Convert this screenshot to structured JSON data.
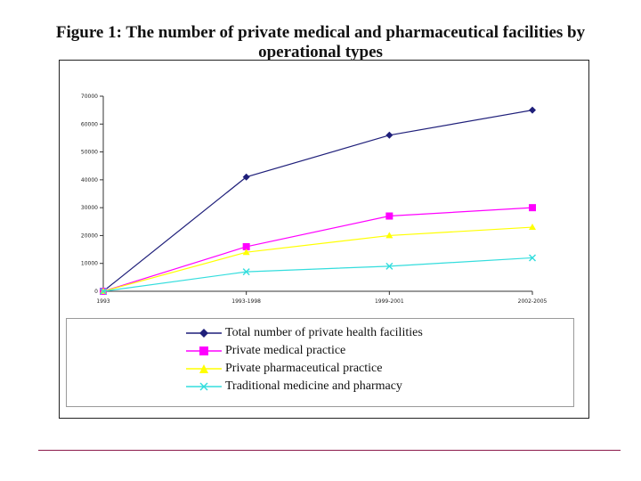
{
  "figure": {
    "title_line1": "Figure 1: The number of private medical and pharmaceutical facilities by",
    "title_line2": "operational types"
  },
  "chart_data": {
    "type": "line",
    "title": "Figure 1: The number of private medical and pharmaceutical facilities by operational types",
    "xlabel": "",
    "ylabel": "",
    "categories": [
      "1993",
      "1993-1998",
      "1999-2001",
      "2002-2005"
    ],
    "ylim": [
      0,
      70000
    ],
    "yticks": [
      "70000",
      "60000",
      "50000",
      "40000",
      "30000",
      "20000",
      "10000",
      "0"
    ],
    "grid": false,
    "legend_position": "bottom",
    "series": [
      {
        "name": "Total number of private health facilities",
        "color": "#1f1f7a",
        "marker": "diamond",
        "values": [
          0,
          41000,
          56000,
          65000
        ]
      },
      {
        "name": "Private medical practice",
        "color": "#ff00ff",
        "marker": "square",
        "values": [
          0,
          16000,
          27000,
          30000
        ]
      },
      {
        "name": "Private pharmaceutical practice",
        "color": "#ffff00",
        "marker": "triangle",
        "values": [
          0,
          14000,
          20000,
          23000
        ]
      },
      {
        "name": "Traditional medicine and pharmacy",
        "color": "#33dddd",
        "marker": "x",
        "values": [
          0,
          7000,
          9000,
          12000
        ]
      }
    ]
  },
  "colors": {
    "rule": "#8b1a4a"
  }
}
